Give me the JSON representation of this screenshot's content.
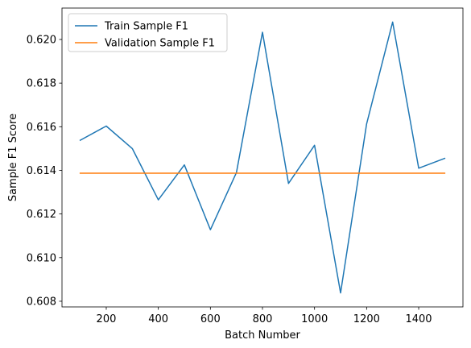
{
  "chart_data": {
    "type": "line",
    "title": "",
    "xlabel": "Batch Number",
    "ylabel": "Sample F1 Score",
    "x": [
      100,
      200,
      300,
      400,
      500,
      600,
      700,
      800,
      900,
      1000,
      1100,
      1200,
      1300,
      1400,
      1500
    ],
    "series": [
      {
        "name": "Train Sample F1",
        "color": "#1f77b4",
        "values": [
          0.61538,
          0.61603,
          0.615,
          0.61265,
          0.61425,
          0.61128,
          0.6139,
          0.62033,
          0.6134,
          0.61515,
          0.60838,
          0.61613,
          0.6208,
          0.6141,
          0.61455
        ]
      },
      {
        "name": "Validation Sample F1",
        "color": "#ff7f0e",
        "values": [
          0.61387,
          0.61387,
          0.61387,
          0.61387,
          0.61387,
          0.61387,
          0.61387,
          0.61387,
          0.61387,
          0.61387,
          0.61387,
          0.61387,
          0.61387,
          0.61387,
          0.61387
        ]
      }
    ],
    "xlim": [
      30,
      1570
    ],
    "ylim": [
      0.60774,
      0.62144
    ],
    "xticks": [
      200,
      400,
      600,
      800,
      1000,
      1200,
      1400
    ],
    "yticks": [
      0.608,
      0.61,
      0.612,
      0.614,
      0.616,
      0.618,
      0.62
    ],
    "ytick_decimals": 3,
    "grid": false,
    "legend_position": "upper-left"
  }
}
